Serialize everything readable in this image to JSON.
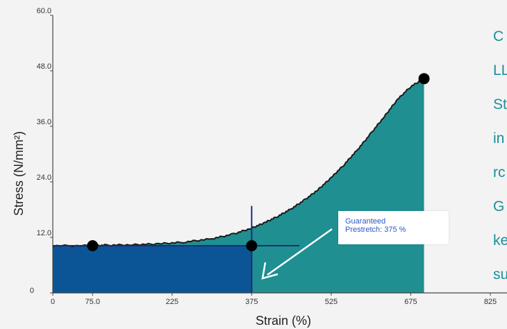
{
  "chart_data": {
    "type": "area",
    "xlabel": "Strain (%)",
    "ylabel": "Stress (N/mm²)",
    "xlim": [
      0,
      825
    ],
    "ylim": [
      0,
      60
    ],
    "x_ticks": [
      {
        "value": 0,
        "label": "0"
      },
      {
        "value": 75,
        "label": "75.0"
      },
      {
        "value": 225,
        "label": "225"
      },
      {
        "value": 375,
        "label": "375"
      },
      {
        "value": 525,
        "label": "525"
      },
      {
        "value": 675,
        "label": "675"
      },
      {
        "value": 825,
        "label": "825"
      }
    ],
    "y_ticks": [
      {
        "value": 0,
        "label": "0"
      },
      {
        "value": 12,
        "label": "12.0"
      },
      {
        "value": 24,
        "label": "24.0"
      },
      {
        "value": 36,
        "label": "36.0"
      },
      {
        "value": 48,
        "label": "48.0"
      },
      {
        "value": 60,
        "label": "60.0"
      }
    ],
    "series": [
      {
        "x": [
          0,
          75,
          100,
          150,
          200,
          250,
          300,
          340,
          375,
          400,
          425,
          450,
          475,
          500,
          525,
          550,
          575,
          600,
          625,
          650,
          675,
          700
        ],
        "y": [
          10.2,
          10.2,
          10.3,
          10.4,
          10.6,
          11.0,
          11.7,
          12.7,
          14.0,
          15.2,
          16.6,
          18.2,
          20.1,
          22.3,
          24.9,
          27.8,
          31.0,
          34.5,
          38.1,
          41.8,
          44.6,
          46.3
        ]
      }
    ],
    "markers": [
      {
        "x": 75,
        "y": 10.2
      },
      {
        "x": 375,
        "y": 10.2
      },
      {
        "x": 700,
        "y": 46.3
      }
    ],
    "highlight_region": {
      "x": [
        0,
        375
      ],
      "y": [
        0,
        10.2
      ]
    },
    "annotation": {
      "line1": "Guaranteed",
      "line2": "Prestretch: 375 %"
    },
    "colors": {
      "area": "#1f8f91",
      "highlight": "#0b5596",
      "marker": "#000000",
      "curve": "#1a1a1a",
      "crosshair": "#1e2a7a",
      "side_text": "#1b8f9a"
    }
  },
  "side_text": [
    "C",
    "LL",
    "St",
    "in",
    "rc",
    "G",
    "ke",
    "su"
  ]
}
